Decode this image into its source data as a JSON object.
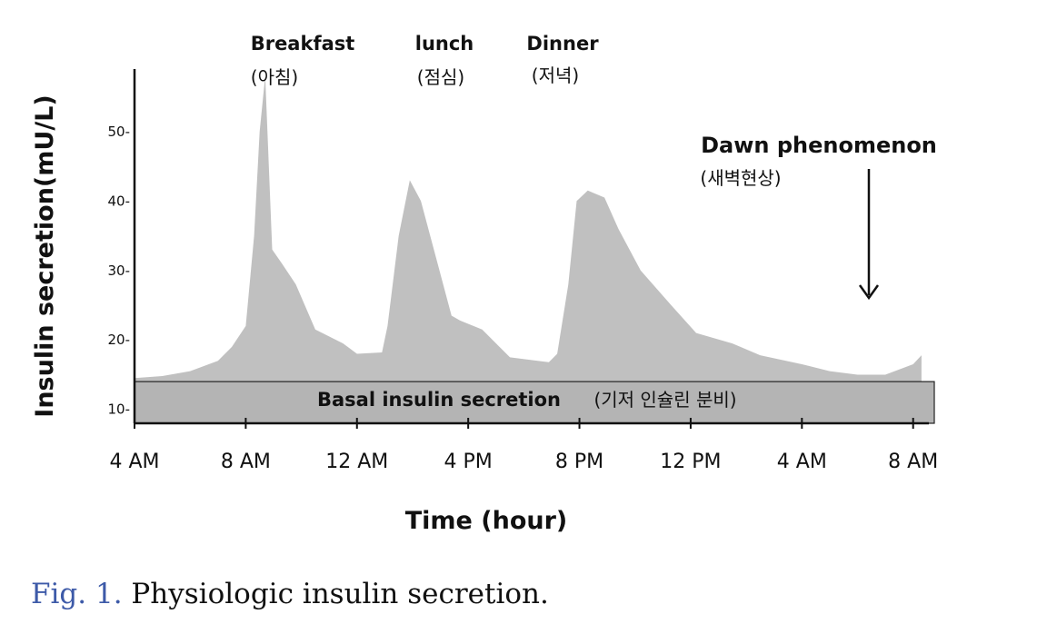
{
  "chart_data": {
    "type": "area",
    "title": "",
    "xlabel": "Time (hour)",
    "ylabel": "Insulin secretion(mU/L)",
    "ylim": [
      8,
      59
    ],
    "y_ticks": [
      {
        "value": 10,
        "label": "10-"
      },
      {
        "value": 20,
        "label": "20-"
      },
      {
        "value": 30,
        "label": "30-"
      },
      {
        "value": 40,
        "label": "40-"
      },
      {
        "value": 50,
        "label": "50-"
      }
    ],
    "x_ticks": [
      {
        "hour": 0,
        "label": "4 AM"
      },
      {
        "hour": 4,
        "label": "8 AM"
      },
      {
        "hour": 8,
        "label": "12 AM"
      },
      {
        "hour": 12,
        "label": "4 PM"
      },
      {
        "hour": 16,
        "label": "8 PM"
      },
      {
        "hour": 20,
        "label": "12 PM"
      },
      {
        "hour": 24,
        "label": "4 AM"
      },
      {
        "hour": 28,
        "label": "8 AM"
      }
    ],
    "x_unit": "hours after 4 AM",
    "xlim": [
      0,
      28.5
    ],
    "basal_level": 14,
    "series": [
      {
        "x": [
          0,
          1,
          2,
          3,
          3.5,
          4,
          4.3,
          4.5,
          4.7,
          4.95,
          5.3,
          5.8,
          6.5,
          7.5,
          8,
          8.9,
          9.1,
          9.5,
          9.9,
          10.3,
          10.9,
          11.4,
          11.7,
          12.5,
          13.5,
          14.5,
          14.9,
          15.2,
          15.6,
          15.9,
          16.3,
          16.9,
          17.4,
          18.2,
          19.3,
          20.2,
          21.5,
          22.5,
          24,
          25,
          26,
          27,
          28,
          28.3
        ],
        "values": [
          14.5,
          14.8,
          15.5,
          17.0,
          19.0,
          22.0,
          35.0,
          50.0,
          58.0,
          33.0,
          31.0,
          28.0,
          21.5,
          19.5,
          18.0,
          18.2,
          22.0,
          35.0,
          43.0,
          40.0,
          31.0,
          23.5,
          22.8,
          21.5,
          17.5,
          17.0,
          16.8,
          18.0,
          28.0,
          40.0,
          41.5,
          40.5,
          36.0,
          30.0,
          25.0,
          21.0,
          19.5,
          17.8,
          16.5,
          15.5,
          15.0,
          15.0,
          16.5,
          17.8
        ]
      }
    ],
    "annotations": {
      "breakfast": {
        "en": "Breakfast",
        "ko": "(아침)"
      },
      "lunch": {
        "en": "lunch",
        "ko": "(점심)"
      },
      "dinner": {
        "en": "Dinner",
        "ko": "(저녁)"
      },
      "dawn": {
        "en": "Dawn phenomenon",
        "ko": "(새벽현상)"
      },
      "basal": {
        "en": "Basal insulin  secretion",
        "ko": "(기저 인슐린 분비)"
      }
    },
    "colors": {
      "area": "#c0c0c0",
      "basal_band": "#b4b4b4",
      "axis": "#111111"
    }
  },
  "caption": {
    "label": "Fig. 1.",
    "text": "Physiologic insulin secretion."
  }
}
